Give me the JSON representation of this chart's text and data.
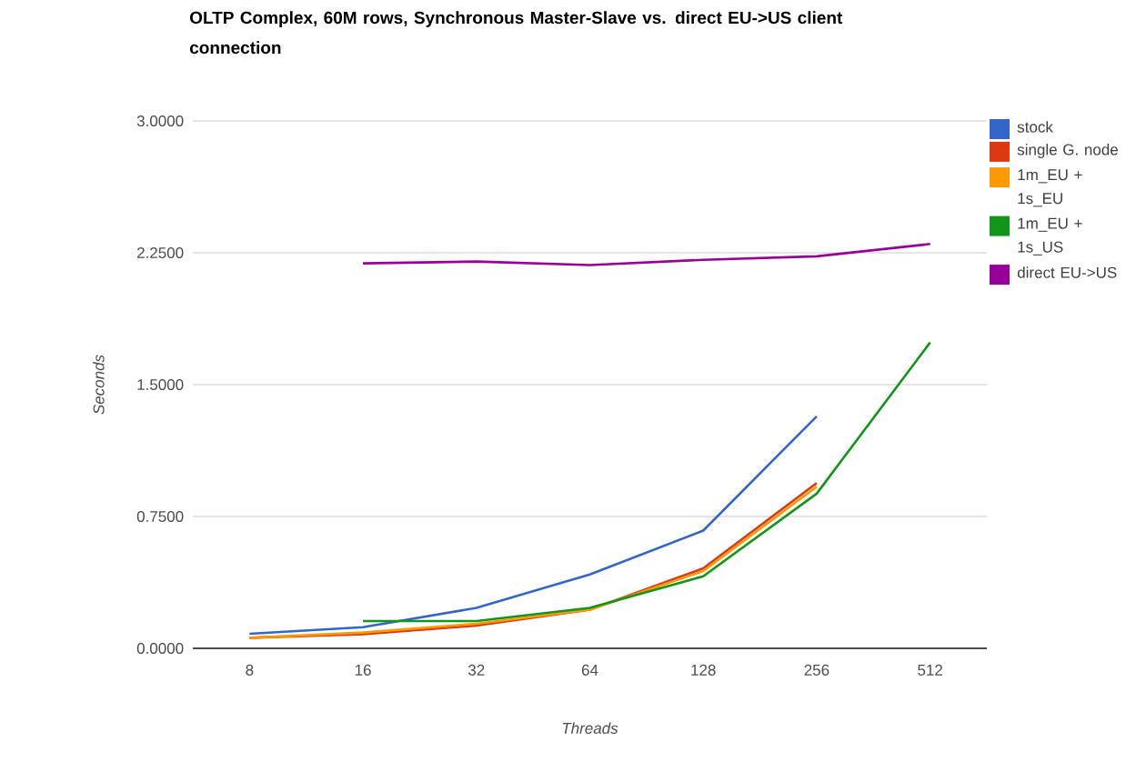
{
  "chart_data": {
    "type": "line",
    "title": "OLTP Complex, 60M rows, Synchronous Master-Slave vs. direct EU->US client connection",
    "xlabel": "Threads",
    "ylabel": "Seconds",
    "categories": [
      "8",
      "16",
      "32",
      "64",
      "128",
      "256",
      "512"
    ],
    "series": [
      {
        "name": "stock",
        "color": "#3366cc",
        "values": [
          0.083,
          0.12,
          0.23,
          0.42,
          0.67,
          1.32,
          null
        ]
      },
      {
        "name": "single G. node",
        "color": "#dc3912",
        "values": [
          0.06,
          0.08,
          0.13,
          0.22,
          0.455,
          0.94,
          null
        ]
      },
      {
        "name": "1m_EU + 1s_EU",
        "color": "#ff9900",
        "values": [
          0.06,
          0.09,
          0.14,
          0.22,
          0.44,
          0.92,
          null
        ]
      },
      {
        "name": "1m_EU + 1s_US",
        "color": "#109618",
        "values": [
          null,
          0.155,
          0.155,
          0.23,
          0.41,
          0.88,
          1.74
        ]
      },
      {
        "name": "direct EU->US",
        "color": "#990099",
        "values": [
          null,
          2.19,
          2.2,
          2.18,
          2.21,
          2.23,
          2.3
        ]
      }
    ],
    "ylim": [
      0,
      3
    ],
    "yticks": [
      {
        "value": 0,
        "label": "0.0000"
      },
      {
        "value": 0.75,
        "label": "0.7500"
      },
      {
        "value": 1.5,
        "label": "1.5000"
      },
      {
        "value": 2.25,
        "label": "2.2500"
      },
      {
        "value": 3,
        "label": "3.0000"
      }
    ],
    "grid": "y",
    "legend": "right"
  }
}
